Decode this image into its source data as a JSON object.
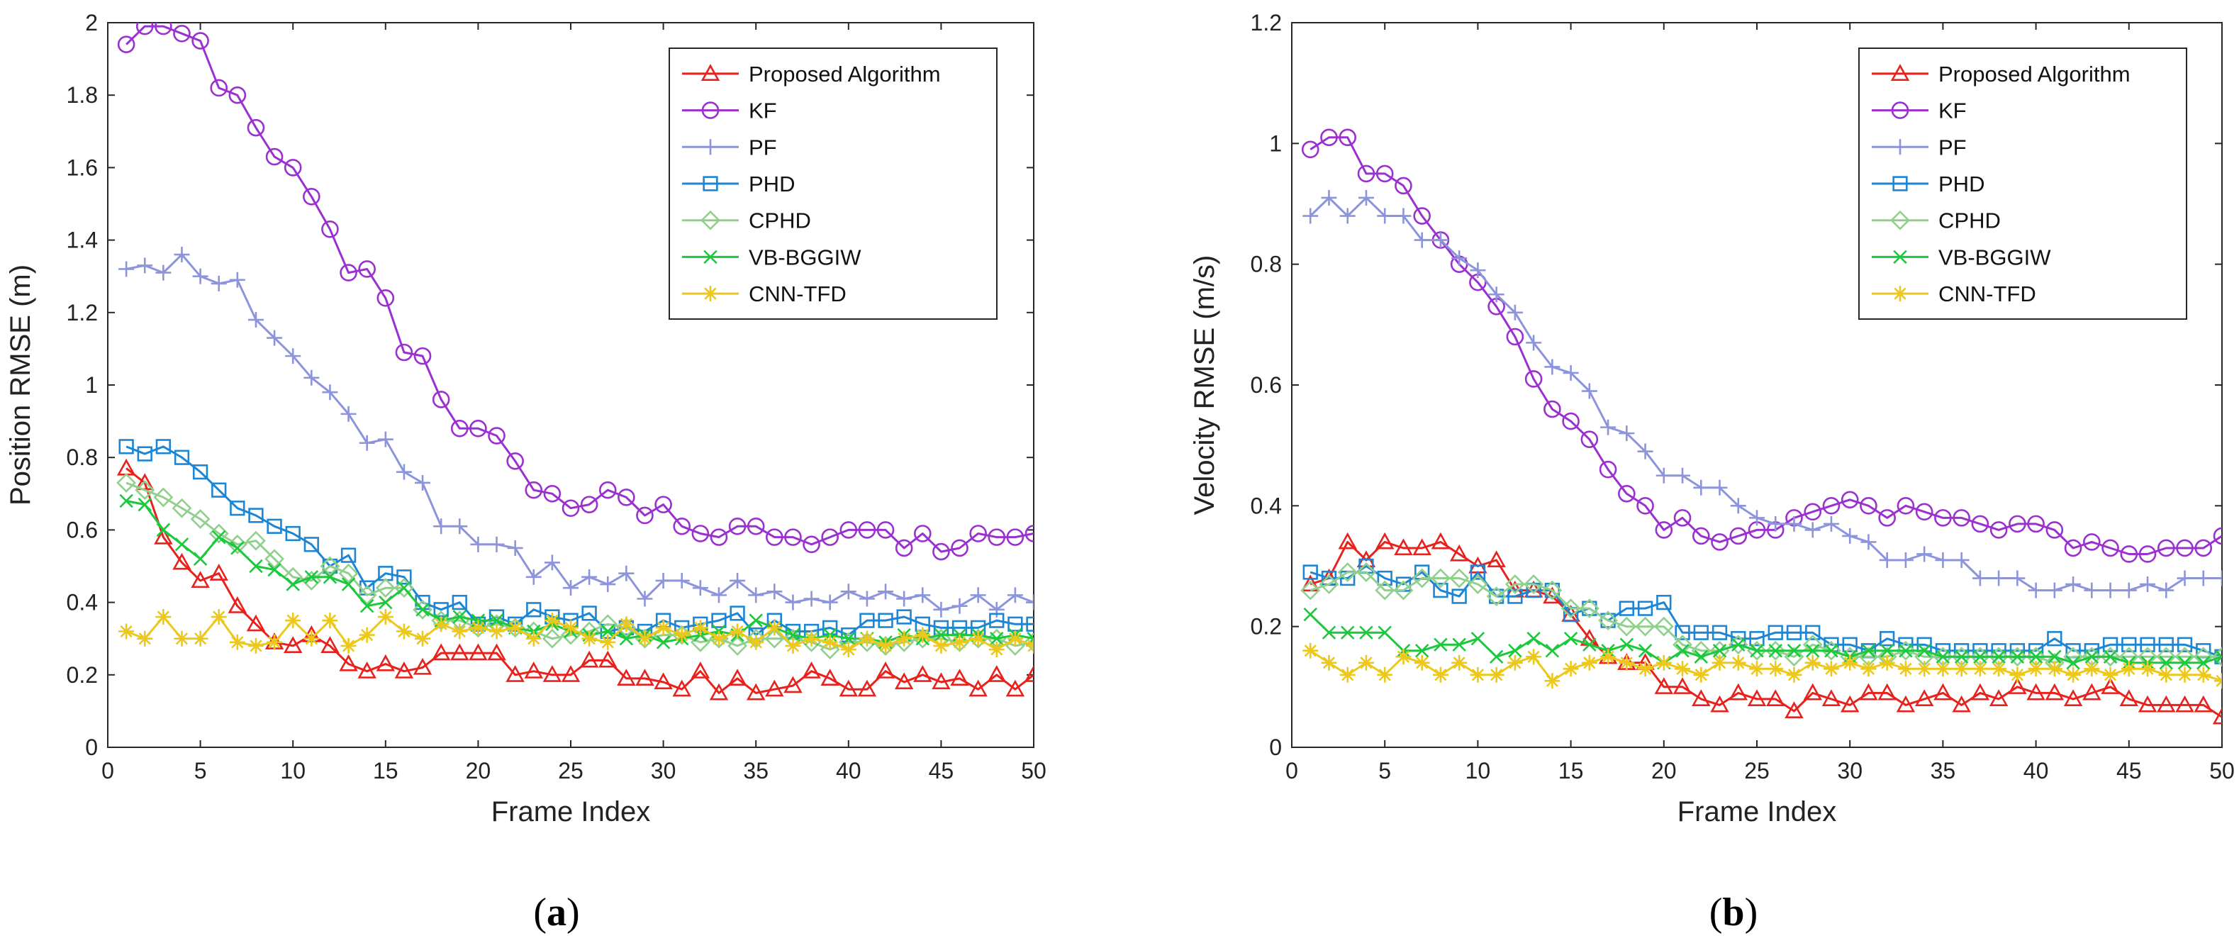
{
  "captions": {
    "a": "(a)",
    "b": "(b)"
  },
  "chart_data": [
    {
      "type": "line",
      "id": "a",
      "xlabel": "Frame Index",
      "ylabel": "Position RMSE (m)",
      "xlim": [
        0,
        50
      ],
      "ylim": [
        0,
        2
      ],
      "xticks": [
        0,
        5,
        10,
        15,
        20,
        25,
        30,
        35,
        40,
        45,
        50
      ],
      "yticks": [
        0,
        0.2,
        0.4,
        0.6,
        0.8,
        1,
        1.2,
        1.4,
        1.6,
        1.8,
        2
      ],
      "legend_position": "top-right",
      "x": [
        1,
        2,
        3,
        4,
        5,
        6,
        7,
        8,
        9,
        10,
        11,
        12,
        13,
        14,
        15,
        16,
        17,
        18,
        19,
        20,
        21,
        22,
        23,
        24,
        25,
        26,
        27,
        28,
        29,
        30,
        31,
        32,
        33,
        34,
        35,
        36,
        37,
        38,
        39,
        40,
        41,
        42,
        43,
        44,
        45,
        46,
        47,
        48,
        49,
        50
      ],
      "series": [
        {
          "name": "Proposed Algorithm",
          "color": "#e8211c",
          "marker": "triangle",
          "values": [
            0.77,
            0.73,
            0.58,
            0.51,
            0.46,
            0.48,
            0.39,
            0.34,
            0.29,
            0.28,
            0.31,
            0.28,
            0.23,
            0.21,
            0.23,
            0.21,
            0.22,
            0.26,
            0.26,
            0.26,
            0.26,
            0.2,
            0.21,
            0.2,
            0.2,
            0.24,
            0.24,
            0.19,
            0.19,
            0.18,
            0.16,
            0.21,
            0.15,
            0.19,
            0.15,
            0.16,
            0.17,
            0.21,
            0.19,
            0.16,
            0.16,
            0.21,
            0.18,
            0.2,
            0.18,
            0.19,
            0.16,
            0.2,
            0.16,
            0.2
          ]
        },
        {
          "name": "KF",
          "color": "#9b30d0",
          "marker": "circle",
          "values": [
            1.94,
            1.99,
            1.99,
            1.97,
            1.95,
            1.82,
            1.8,
            1.71,
            1.63,
            1.6,
            1.52,
            1.43,
            1.31,
            1.32,
            1.24,
            1.09,
            1.08,
            0.96,
            0.88,
            0.88,
            0.86,
            0.79,
            0.71,
            0.7,
            0.66,
            0.67,
            0.71,
            0.69,
            0.64,
            0.67,
            0.61,
            0.59,
            0.58,
            0.61,
            0.61,
            0.58,
            0.58,
            0.56,
            0.58,
            0.6,
            0.6,
            0.6,
            0.55,
            0.59,
            0.54,
            0.55,
            0.59,
            0.58,
            0.58,
            0.59
          ]
        },
        {
          "name": "PF",
          "color": "#8c94dc",
          "marker": "plus",
          "values": [
            1.32,
            1.33,
            1.31,
            1.36,
            1.3,
            1.28,
            1.29,
            1.18,
            1.13,
            1.08,
            1.02,
            0.98,
            0.92,
            0.84,
            0.85,
            0.76,
            0.73,
            0.61,
            0.61,
            0.56,
            0.56,
            0.55,
            0.47,
            0.51,
            0.44,
            0.47,
            0.45,
            0.48,
            0.41,
            0.46,
            0.46,
            0.44,
            0.42,
            0.46,
            0.42,
            0.43,
            0.4,
            0.41,
            0.4,
            0.43,
            0.41,
            0.43,
            0.41,
            0.42,
            0.38,
            0.39,
            0.42,
            0.38,
            0.42,
            0.4
          ]
        },
        {
          "name": "PHD",
          "color": "#1c86d4",
          "marker": "square",
          "values": [
            0.83,
            0.81,
            0.83,
            0.8,
            0.76,
            0.71,
            0.66,
            0.64,
            0.61,
            0.59,
            0.56,
            0.5,
            0.53,
            0.44,
            0.48,
            0.47,
            0.4,
            0.38,
            0.4,
            0.34,
            0.36,
            0.34,
            0.38,
            0.36,
            0.35,
            0.37,
            0.32,
            0.33,
            0.32,
            0.35,
            0.33,
            0.34,
            0.35,
            0.37,
            0.31,
            0.35,
            0.32,
            0.32,
            0.33,
            0.31,
            0.35,
            0.35,
            0.36,
            0.34,
            0.33,
            0.33,
            0.33,
            0.35,
            0.34,
            0.34
          ]
        },
        {
          "name": "CPHD",
          "color": "#90d08c",
          "marker": "diamond",
          "values": [
            0.73,
            0.71,
            0.69,
            0.66,
            0.63,
            0.59,
            0.56,
            0.57,
            0.52,
            0.47,
            0.46,
            0.5,
            0.48,
            0.42,
            0.44,
            0.44,
            0.38,
            0.35,
            0.35,
            0.33,
            0.34,
            0.33,
            0.32,
            0.3,
            0.31,
            0.32,
            0.34,
            0.33,
            0.3,
            0.31,
            0.31,
            0.29,
            0.3,
            0.28,
            0.3,
            0.3,
            0.3,
            0.29,
            0.27,
            0.29,
            0.29,
            0.28,
            0.29,
            0.3,
            0.3,
            0.29,
            0.3,
            0.3,
            0.28,
            0.29
          ]
        },
        {
          "name": "VB-BGGIW",
          "color": "#1cc83c",
          "marker": "x",
          "values": [
            0.68,
            0.67,
            0.6,
            0.56,
            0.52,
            0.58,
            0.55,
            0.5,
            0.49,
            0.45,
            0.47,
            0.47,
            0.45,
            0.39,
            0.4,
            0.44,
            0.38,
            0.35,
            0.36,
            0.35,
            0.35,
            0.33,
            0.32,
            0.34,
            0.32,
            0.31,
            0.32,
            0.3,
            0.31,
            0.29,
            0.3,
            0.31,
            0.32,
            0.31,
            0.35,
            0.33,
            0.31,
            0.3,
            0.31,
            0.3,
            0.3,
            0.29,
            0.31,
            0.3,
            0.31,
            0.31,
            0.31,
            0.3,
            0.31,
            0.3
          ]
        },
        {
          "name": "CNN-TFD",
          "color": "#ecc81c",
          "marker": "asterisk",
          "values": [
            0.32,
            0.3,
            0.36,
            0.3,
            0.3,
            0.36,
            0.29,
            0.28,
            0.29,
            0.35,
            0.3,
            0.35,
            0.28,
            0.31,
            0.36,
            0.32,
            0.3,
            0.34,
            0.32,
            0.33,
            0.32,
            0.33,
            0.3,
            0.35,
            0.33,
            0.3,
            0.29,
            0.34,
            0.3,
            0.33,
            0.31,
            0.33,
            0.3,
            0.32,
            0.29,
            0.33,
            0.28,
            0.3,
            0.29,
            0.27,
            0.3,
            0.28,
            0.3,
            0.31,
            0.28,
            0.29,
            0.3,
            0.27,
            0.3,
            0.28
          ]
        }
      ]
    },
    {
      "type": "line",
      "id": "b",
      "xlabel": "Frame Index",
      "ylabel": "Velocity RMSE (m/s)",
      "xlim": [
        0,
        50
      ],
      "ylim": [
        0,
        1.2
      ],
      "xticks": [
        0,
        5,
        10,
        15,
        20,
        25,
        30,
        35,
        40,
        45,
        50
      ],
      "yticks": [
        0,
        0.2,
        0.4,
        0.6,
        0.8,
        1,
        1.2
      ],
      "legend_position": "top-right",
      "x": [
        1,
        2,
        3,
        4,
        5,
        6,
        7,
        8,
        9,
        10,
        11,
        12,
        13,
        14,
        15,
        16,
        17,
        18,
        19,
        20,
        21,
        22,
        23,
        24,
        25,
        26,
        27,
        28,
        29,
        30,
        31,
        32,
        33,
        34,
        35,
        36,
        37,
        38,
        39,
        40,
        41,
        42,
        43,
        44,
        45,
        46,
        47,
        48,
        49,
        50
      ],
      "series": [
        {
          "name": "Proposed Algorithm",
          "color": "#e8211c",
          "marker": "triangle",
          "values": [
            0.27,
            0.28,
            0.34,
            0.31,
            0.34,
            0.33,
            0.33,
            0.34,
            0.32,
            0.3,
            0.31,
            0.26,
            0.26,
            0.25,
            0.22,
            0.18,
            0.15,
            0.14,
            0.14,
            0.1,
            0.1,
            0.08,
            0.07,
            0.09,
            0.08,
            0.08,
            0.06,
            0.09,
            0.08,
            0.07,
            0.09,
            0.09,
            0.07,
            0.08,
            0.09,
            0.07,
            0.09,
            0.08,
            0.1,
            0.09,
            0.09,
            0.08,
            0.09,
            0.1,
            0.08,
            0.07,
            0.07,
            0.07,
            0.07,
            0.05
          ]
        },
        {
          "name": "KF",
          "color": "#9b30d0",
          "marker": "circle",
          "values": [
            0.99,
            1.01,
            1.01,
            0.95,
            0.95,
            0.93,
            0.88,
            0.84,
            0.8,
            0.77,
            0.73,
            0.68,
            0.61,
            0.56,
            0.54,
            0.51,
            0.46,
            0.42,
            0.4,
            0.36,
            0.38,
            0.35,
            0.34,
            0.35,
            0.36,
            0.36,
            0.38,
            0.39,
            0.4,
            0.41,
            0.4,
            0.38,
            0.4,
            0.39,
            0.38,
            0.38,
            0.37,
            0.36,
            0.37,
            0.37,
            0.36,
            0.33,
            0.34,
            0.33,
            0.32,
            0.32,
            0.33,
            0.33,
            0.33,
            0.35
          ]
        },
        {
          "name": "PF",
          "color": "#8c94dc",
          "marker": "plus",
          "values": [
            0.88,
            0.91,
            0.88,
            0.91,
            0.88,
            0.88,
            0.84,
            0.84,
            0.81,
            0.79,
            0.75,
            0.72,
            0.67,
            0.63,
            0.62,
            0.59,
            0.53,
            0.52,
            0.49,
            0.45,
            0.45,
            0.43,
            0.43,
            0.4,
            0.38,
            0.37,
            0.37,
            0.36,
            0.37,
            0.35,
            0.34,
            0.31,
            0.31,
            0.32,
            0.31,
            0.31,
            0.28,
            0.28,
            0.28,
            0.26,
            0.26,
            0.27,
            0.26,
            0.26,
            0.26,
            0.27,
            0.26,
            0.28,
            0.28,
            0.28
          ]
        },
        {
          "name": "PHD",
          "color": "#1c86d4",
          "marker": "square",
          "values": [
            0.29,
            0.28,
            0.28,
            0.3,
            0.28,
            0.27,
            0.29,
            0.26,
            0.25,
            0.29,
            0.25,
            0.25,
            0.26,
            0.26,
            0.22,
            0.23,
            0.21,
            0.23,
            0.23,
            0.24,
            0.19,
            0.19,
            0.19,
            0.18,
            0.18,
            0.19,
            0.19,
            0.19,
            0.17,
            0.17,
            0.16,
            0.18,
            0.17,
            0.17,
            0.16,
            0.16,
            0.16,
            0.16,
            0.16,
            0.16,
            0.18,
            0.16,
            0.16,
            0.17,
            0.17,
            0.17,
            0.17,
            0.17,
            0.16,
            0.15
          ]
        },
        {
          "name": "CPHD",
          "color": "#90d08c",
          "marker": "diamond",
          "values": [
            0.26,
            0.27,
            0.29,
            0.29,
            0.26,
            0.26,
            0.28,
            0.28,
            0.28,
            0.27,
            0.25,
            0.27,
            0.27,
            0.26,
            0.23,
            0.23,
            0.21,
            0.2,
            0.2,
            0.2,
            0.17,
            0.16,
            0.16,
            0.17,
            0.16,
            0.16,
            0.15,
            0.17,
            0.16,
            0.15,
            0.15,
            0.15,
            0.16,
            0.15,
            0.15,
            0.15,
            0.15,
            0.15,
            0.15,
            0.15,
            0.14,
            0.15,
            0.15,
            0.15,
            0.15,
            0.15,
            0.15,
            0.15,
            0.15,
            0.15
          ]
        },
        {
          "name": "VB-BGGIW",
          "color": "#1cc83c",
          "marker": "x",
          "values": [
            0.22,
            0.19,
            0.19,
            0.19,
            0.19,
            0.16,
            0.16,
            0.17,
            0.17,
            0.18,
            0.15,
            0.16,
            0.18,
            0.16,
            0.18,
            0.17,
            0.16,
            0.17,
            0.16,
            0.14,
            0.16,
            0.15,
            0.16,
            0.17,
            0.16,
            0.16,
            0.16,
            0.16,
            0.16,
            0.15,
            0.16,
            0.16,
            0.16,
            0.16,
            0.15,
            0.15,
            0.15,
            0.15,
            0.15,
            0.15,
            0.15,
            0.14,
            0.15,
            0.15,
            0.14,
            0.14,
            0.14,
            0.14,
            0.14,
            0.15
          ]
        },
        {
          "name": "CNN-TFD",
          "color": "#ecc81c",
          "marker": "asterisk",
          "values": [
            0.16,
            0.14,
            0.12,
            0.14,
            0.12,
            0.15,
            0.14,
            0.12,
            0.14,
            0.12,
            0.12,
            0.14,
            0.15,
            0.11,
            0.13,
            0.14,
            0.15,
            0.14,
            0.13,
            0.14,
            0.13,
            0.12,
            0.14,
            0.14,
            0.13,
            0.13,
            0.12,
            0.14,
            0.13,
            0.14,
            0.13,
            0.14,
            0.13,
            0.13,
            0.13,
            0.13,
            0.13,
            0.13,
            0.12,
            0.13,
            0.13,
            0.12,
            0.13,
            0.12,
            0.13,
            0.13,
            0.12,
            0.12,
            0.12,
            0.11
          ]
        }
      ]
    }
  ]
}
